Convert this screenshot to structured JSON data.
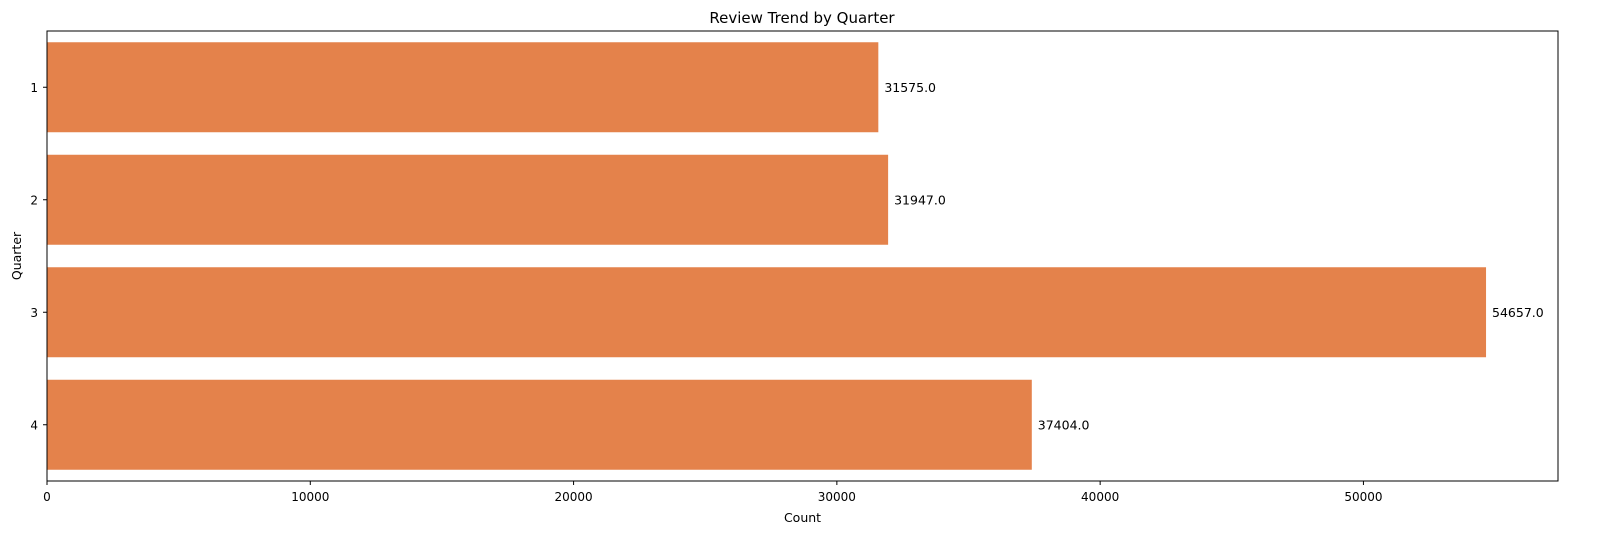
{
  "chart_data": {
    "type": "bar",
    "orientation": "horizontal",
    "title": "Review Trend by Quarter",
    "xlabel": "Count",
    "ylabel": "Quarter",
    "categories": [
      "1",
      "2",
      "3",
      "4"
    ],
    "values": [
      31575.0,
      31947.0,
      54657.0,
      37404.0
    ],
    "data_labels": [
      "31575.0",
      "31947.0",
      "54657.0",
      "37404.0"
    ],
    "xlim": [
      0,
      57390
    ],
    "xticks": [
      0,
      10000,
      20000,
      30000,
      40000,
      50000
    ],
    "xtick_labels": [
      "0",
      "10000",
      "20000",
      "30000",
      "40000",
      "50000"
    ],
    "bar_color": "#e4824b",
    "grid": false,
    "legend": "none"
  }
}
